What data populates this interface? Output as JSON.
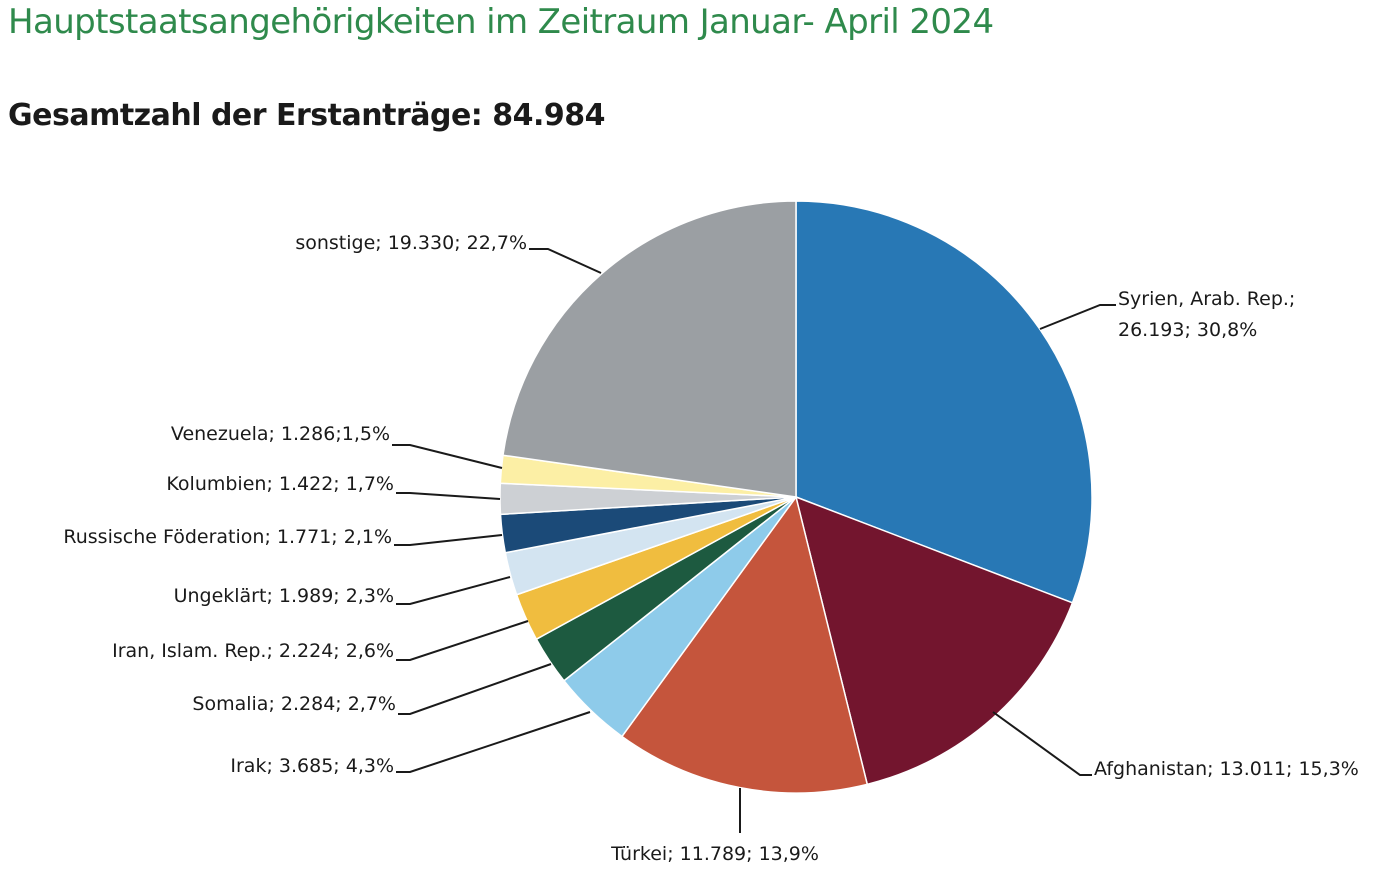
{
  "title": "Hauptstaatsangehörigkeiten im Zeitraum Januar- April 2024",
  "subtitle": "Gesamtzahl der Erstanträge: 84.984",
  "chart_data": {
    "type": "pie",
    "title": "Hauptstaatsangehörigkeiten im Zeitraum Januar- April 2024",
    "subtitle": "Gesamtzahl der Erstanträge: 84.984",
    "total": 84984,
    "slices": [
      {
        "name": "Syrien, Arab. Rep.",
        "value": 26193,
        "percent": 30.8,
        "color": "#2878b5",
        "label_lines": [
          "Syrien, Arab. Rep.;",
          "26.193; 30,8%"
        ]
      },
      {
        "name": "Afghanistan",
        "value": 13011,
        "percent": 15.3,
        "color": "#73152e",
        "label_lines": [
          "Afghanistan; 13.011; 15,3%"
        ]
      },
      {
        "name": "Türkei",
        "value": 11789,
        "percent": 13.9,
        "color": "#c5553c",
        "label_lines": [
          "Türkei; 11.789; 13,9%"
        ]
      },
      {
        "name": "Irak",
        "value": 3685,
        "percent": 4.3,
        "color": "#8ecbea",
        "label_lines": [
          "Irak; 3.685; 4,3%"
        ]
      },
      {
        "name": "Somalia",
        "value": 2284,
        "percent": 2.7,
        "color": "#1d5a40",
        "label_lines": [
          "Somalia; 2.284; 2,7%"
        ]
      },
      {
        "name": "Iran, Islam. Rep.",
        "value": 2224,
        "percent": 2.6,
        "color": "#f0bd3f",
        "label_lines": [
          "Iran, Islam. Rep.; 2.224; 2,6%"
        ]
      },
      {
        "name": "Ungeklärt",
        "value": 1989,
        "percent": 2.3,
        "color": "#d3e4f1",
        "label_lines": [
          "Ungeklärt; 1.989; 2,3%"
        ]
      },
      {
        "name": "Russische Föderation",
        "value": 1771,
        "percent": 2.1,
        "color": "#1b4a78",
        "label_lines": [
          "Russische Föderation; 1.771; 2,1%"
        ]
      },
      {
        "name": "Kolumbien",
        "value": 1422,
        "percent": 1.7,
        "color": "#cdd0d4",
        "label_lines": [
          "Kolumbien; 1.422; 1,7%"
        ]
      },
      {
        "name": "Venezuela",
        "value": 1286,
        "percent": 1.5,
        "color": "#fcefa5",
        "label_lines": [
          "Venezuela; 1.286;1,5%"
        ]
      },
      {
        "name": "sonstige",
        "value": 19330,
        "percent": 22.7,
        "color": "#9b9fa3",
        "label_lines": [
          "sonstige; 19.330; 22,7%"
        ]
      }
    ],
    "start": "12 o'clock",
    "direction": "clockwise",
    "legend": "none (leader-line labels)"
  }
}
